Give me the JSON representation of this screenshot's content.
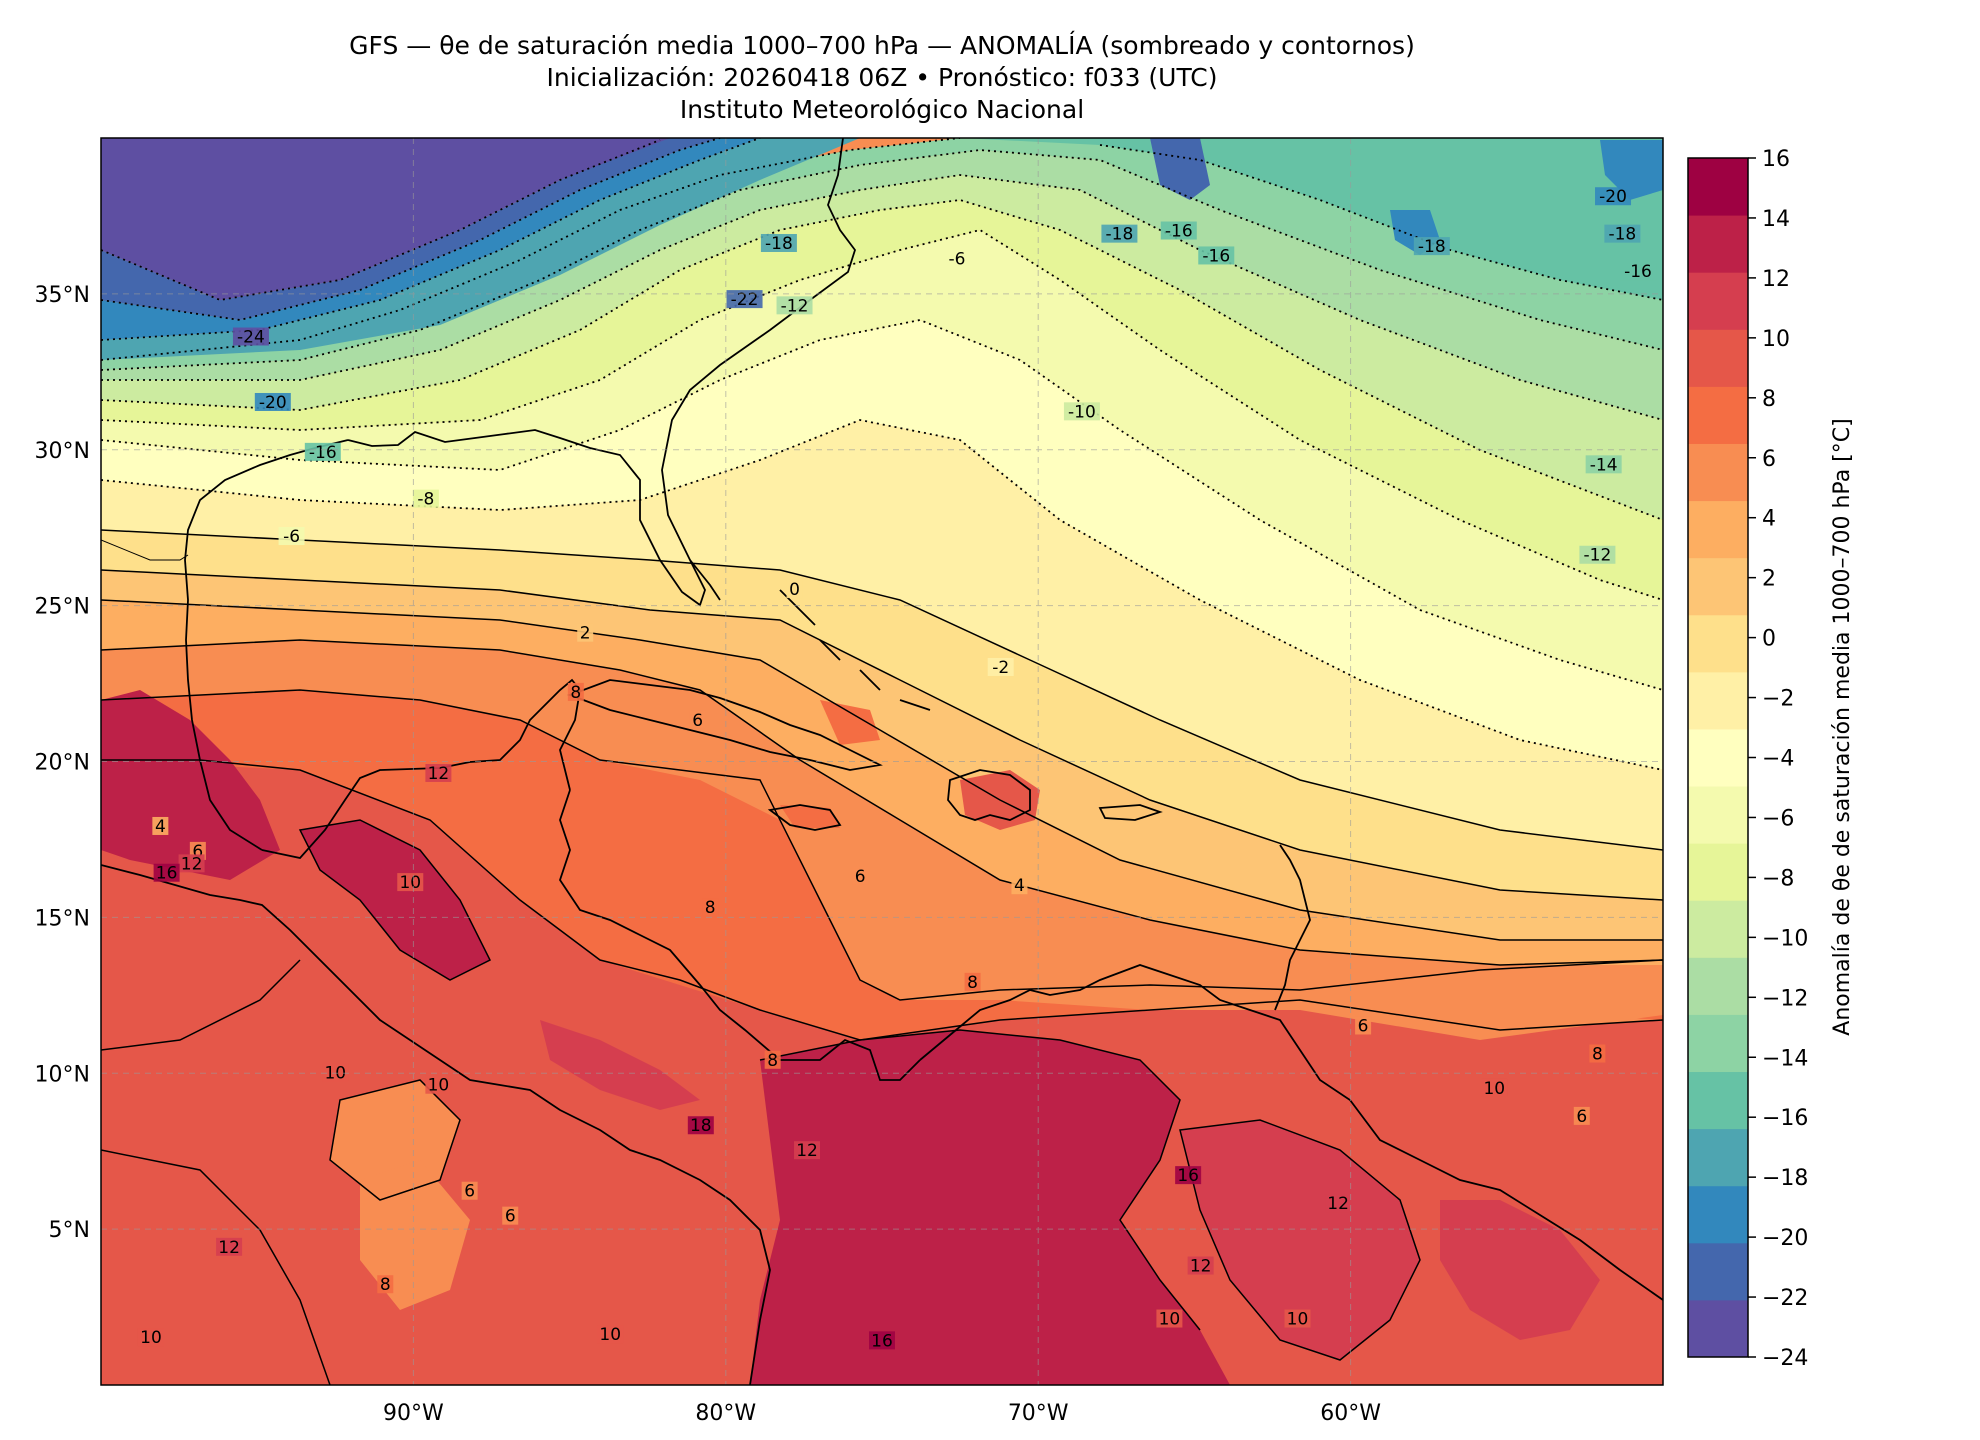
{
  "header": {
    "title_line1": "GFS — θe de saturación media 1000–700 hPa — ANOMALÍA (sombreado y contornos)",
    "title_line2": "Inicialización: 20260418 06Z   •   Pronóstico: f033 (UTC)",
    "title_line3": "Instituto Meteorológico Nacional"
  },
  "map": {
    "extent_lon": [
      -100,
      -50
    ],
    "extent_lat": [
      0,
      40
    ],
    "lon_ticks": [
      {
        "value": -90,
        "label": "90°W"
      },
      {
        "value": -80,
        "label": "80°W"
      },
      {
        "value": -70,
        "label": "70°W"
      },
      {
        "value": -60,
        "label": "60°W"
      }
    ],
    "lat_ticks": [
      {
        "value": 35,
        "label": "35°N"
      },
      {
        "value": 30,
        "label": "30°N"
      },
      {
        "value": 25,
        "label": "25°N"
      },
      {
        "value": 20,
        "label": "20°N"
      },
      {
        "value": 15,
        "label": "15°N"
      },
      {
        "value": 10,
        "label": "10°N"
      },
      {
        "value": 5,
        "label": "5°N"
      }
    ],
    "grid": true,
    "contour_labels": [
      {
        "value": "-24",
        "lon": -95.2,
        "lat": 33.6
      },
      {
        "value": "-22",
        "lon": -79.4,
        "lat": 34.8
      },
      {
        "value": "-20",
        "lon": -94.5,
        "lat": 31.5
      },
      {
        "value": "-20",
        "lon": -51.6,
        "lat": 38.1
      },
      {
        "value": "-18",
        "lon": -78.3,
        "lat": 36.6
      },
      {
        "value": "-18",
        "lon": -67.4,
        "lat": 36.9
      },
      {
        "value": "-18",
        "lon": -57.4,
        "lat": 36.5
      },
      {
        "value": "-18",
        "lon": -51.3,
        "lat": 36.9
      },
      {
        "value": "-16",
        "lon": -92.9,
        "lat": 29.9
      },
      {
        "value": "-16",
        "lon": -65.5,
        "lat": 37.0
      },
      {
        "value": "-16",
        "lon": -64.3,
        "lat": 36.2
      },
      {
        "value": "-16",
        "lon": -50.8,
        "lat": 35.7
      },
      {
        "value": "-14",
        "lon": -51.9,
        "lat": 29.5
      },
      {
        "value": "-12",
        "lon": -77.8,
        "lat": 34.6
      },
      {
        "value": "-12",
        "lon": -52.1,
        "lat": 26.6
      },
      {
        "value": "-10",
        "lon": -68.6,
        "lat": 31.2
      },
      {
        "value": "-8",
        "lon": -89.6,
        "lat": 28.4
      },
      {
        "value": "-6",
        "lon": -72.6,
        "lat": 36.1
      },
      {
        "value": "-6",
        "lon": -93.9,
        "lat": 27.2
      },
      {
        "value": "-2",
        "lon": -71.2,
        "lat": 23.0
      },
      {
        "value": "0",
        "lon": -77.8,
        "lat": 25.5
      },
      {
        "value": "2",
        "lon": -84.5,
        "lat": 24.1
      },
      {
        "value": "4",
        "lon": -98.1,
        "lat": 17.9
      },
      {
        "value": "4",
        "lon": -70.6,
        "lat": 16.0
      },
      {
        "value": "6",
        "lon": -80.9,
        "lat": 21.3
      },
      {
        "value": "6",
        "lon": -96.9,
        "lat": 17.1
      },
      {
        "value": "6",
        "lon": -75.7,
        "lat": 16.3
      },
      {
        "value": "6",
        "lon": -59.6,
        "lat": 11.5
      },
      {
        "value": "6",
        "lon": -88.2,
        "lat": 6.2
      },
      {
        "value": "6",
        "lon": -86.9,
        "lat": 5.4
      },
      {
        "value": "6",
        "lon": -52.6,
        "lat": 8.6
      },
      {
        "value": "8",
        "lon": -84.8,
        "lat": 22.2
      },
      {
        "value": "8",
        "lon": -80.5,
        "lat": 15.3
      },
      {
        "value": "8",
        "lon": -72.1,
        "lat": 12.9
      },
      {
        "value": "8",
        "lon": -78.5,
        "lat": 10.4
      },
      {
        "value": "8",
        "lon": -90.9,
        "lat": 3.2
      },
      {
        "value": "8",
        "lon": -52.1,
        "lat": 10.6
      },
      {
        "value": "10",
        "lon": -90.1,
        "lat": 16.1
      },
      {
        "value": "10",
        "lon": -92.5,
        "lat": 10.0
      },
      {
        "value": "10",
        "lon": -89.2,
        "lat": 9.6
      },
      {
        "value": "10",
        "lon": -55.4,
        "lat": 9.5
      },
      {
        "value": "10",
        "lon": -83.7,
        "lat": 1.6
      },
      {
        "value": "10",
        "lon": -98.4,
        "lat": 1.5
      },
      {
        "value": "10",
        "lon": -61.7,
        "lat": 2.1
      },
      {
        "value": "10",
        "lon": -65.8,
        "lat": 2.1
      },
      {
        "value": "12",
        "lon": -89.2,
        "lat": 19.6
      },
      {
        "value": "12",
        "lon": -95.9,
        "lat": 4.4
      },
      {
        "value": "12",
        "lon": -77.4,
        "lat": 7.5
      },
      {
        "value": "12",
        "lon": -60.4,
        "lat": 5.8
      },
      {
        "value": "12",
        "lon": -64.8,
        "lat": 3.8
      },
      {
        "value": "12",
        "lon": -97.1,
        "lat": 16.7
      },
      {
        "value": "16",
        "lon": -97.9,
        "lat": 16.4
      },
      {
        "value": "16",
        "lon": -75.0,
        "lat": 1.4
      },
      {
        "value": "16",
        "lon": -65.2,
        "lat": 6.7
      },
      {
        "value": "18",
        "lon": -80.8,
        "lat": 8.3
      }
    ]
  },
  "colorbar": {
    "label": "Anomalía de θe de saturación media 1000–700 hPa [°C]",
    "levels": [
      -24,
      -22,
      -20,
      -18,
      -16,
      -14,
      -12,
      -10,
      -8,
      -6,
      -4,
      -2,
      0,
      2,
      4,
      6,
      8,
      10,
      12,
      14,
      16
    ],
    "tick_labels": [
      "16",
      "14",
      "12",
      "10",
      "8",
      "6",
      "4",
      "2",
      "0",
      "−2",
      "−4",
      "−6",
      "−8",
      "−10",
      "−12",
      "−14",
      "−16",
      "−18",
      "−20",
      "−22",
      "−24"
    ],
    "colors": [
      "#5e4fa2",
      "#4467ad",
      "#3288bd",
      "#4ea5b1",
      "#66c2a5",
      "#8dd3a4",
      "#abdda4",
      "#cceba0",
      "#e6f598",
      "#f4faae",
      "#ffffbf",
      "#fff0a6",
      "#fee08b",
      "#fdc575",
      "#fdae61",
      "#f88d52",
      "#f46d43",
      "#e55749",
      "#d53e4f",
      "#bd2148",
      "#9e0142"
    ]
  }
}
